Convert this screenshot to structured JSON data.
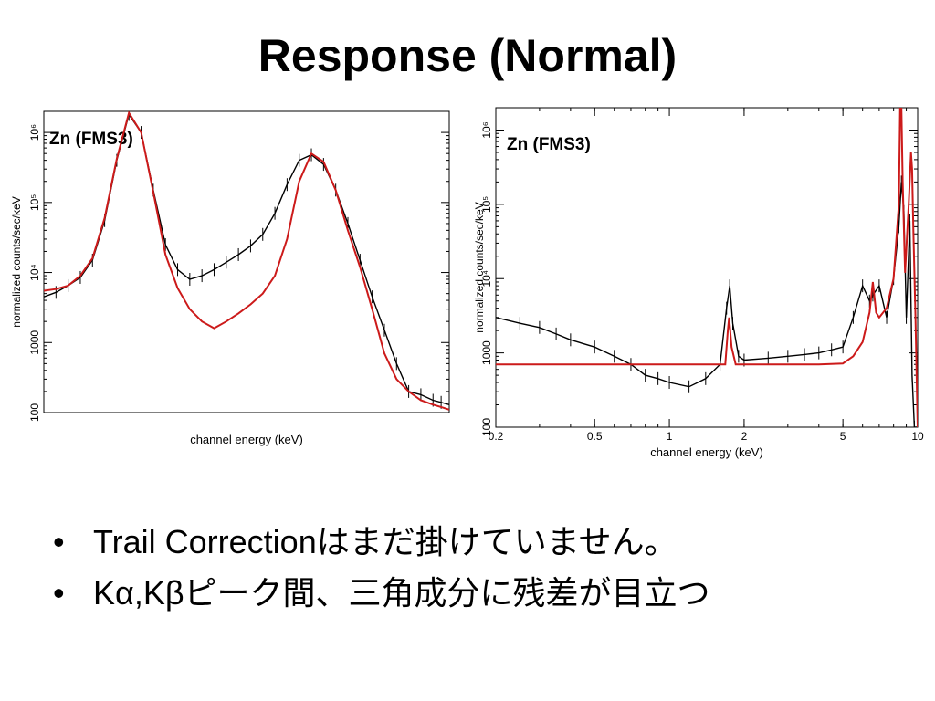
{
  "slide": {
    "title": "Response (Normal)",
    "bullets": [
      "Trail Correctionはまだ掛けていません。",
      "Kα,Kβピーク間、三角成分に残差が目立つ"
    ],
    "bullet_glyph": "•"
  },
  "colors": {
    "data": "#000000",
    "model": "#cc1a1a",
    "axis": "#000000"
  },
  "chart_data": [
    {
      "type": "line",
      "annotation": "Zn (FMS3)",
      "xlabel": "channel energy (keV)",
      "ylabel": "normalized counts/sec/keV",
      "y_scale": "log",
      "ylim": [
        100,
        2000000
      ],
      "y_ticks": [
        {
          "v": 100,
          "label": "100"
        },
        {
          "v": 1000,
          "label": "1000"
        },
        {
          "v": 10000,
          "label": "10⁴"
        },
        {
          "v": 100000,
          "label": "10⁵"
        },
        {
          "v": 1000000,
          "label": "10⁶"
        }
      ],
      "xlim": [
        0,
        1
      ],
      "x_ticks": [],
      "series": [
        {
          "role": "data",
          "x": [
            0.0,
            0.03,
            0.06,
            0.09,
            0.12,
            0.15,
            0.18,
            0.21,
            0.24,
            0.27,
            0.3,
            0.33,
            0.36,
            0.39,
            0.42,
            0.45,
            0.48,
            0.51,
            0.54,
            0.57,
            0.6,
            0.63,
            0.66,
            0.69,
            0.72,
            0.75,
            0.78,
            0.81,
            0.84,
            0.87,
            0.9,
            0.93,
            0.96,
            0.98,
            1.0
          ],
          "y": [
            4500,
            5200,
            6500,
            8500,
            15000,
            55000,
            400000,
            1800000,
            1000000,
            150000,
            25000,
            11000,
            8000,
            9000,
            11000,
            14000,
            18000,
            24000,
            35000,
            70000,
            180000,
            400000,
            480000,
            350000,
            150000,
            50000,
            15000,
            4500,
            1500,
            500,
            200,
            180,
            150,
            140,
            130
          ]
        },
        {
          "role": "model",
          "x": [
            0.0,
            0.03,
            0.06,
            0.09,
            0.12,
            0.15,
            0.18,
            0.21,
            0.24,
            0.27,
            0.3,
            0.33,
            0.36,
            0.39,
            0.42,
            0.45,
            0.48,
            0.51,
            0.54,
            0.57,
            0.6,
            0.63,
            0.66,
            0.69,
            0.72,
            0.75,
            0.78,
            0.81,
            0.84,
            0.87,
            0.9,
            0.93,
            0.96,
            0.98,
            1.0
          ],
          "y": [
            5500,
            5800,
            6500,
            9000,
            16000,
            60000,
            420000,
            1900000,
            1000000,
            140000,
            18000,
            6000,
            3000,
            2000,
            1600,
            2000,
            2600,
            3500,
            5000,
            9000,
            30000,
            200000,
            500000,
            380000,
            150000,
            40000,
            12000,
            3000,
            700,
            300,
            200,
            150,
            130,
            120,
            110
          ]
        }
      ]
    },
    {
      "type": "line",
      "annotation": "Zn (FMS3)",
      "xlabel": "channel energy (keV)",
      "ylabel": "normalized counts/sec/keV",
      "x_scale": "log",
      "xlim": [
        0.2,
        10
      ],
      "x_ticks": [
        {
          "v": 0.2,
          "label": "0.2"
        },
        {
          "v": 0.5,
          "label": "0.5"
        },
        {
          "v": 1,
          "label": "1"
        },
        {
          "v": 2,
          "label": "2"
        },
        {
          "v": 5,
          "label": "5"
        },
        {
          "v": 10,
          "label": "10"
        }
      ],
      "y_scale": "log",
      "ylim": [
        100,
        2000000
      ],
      "y_ticks": [
        {
          "v": 100,
          "label": "100"
        },
        {
          "v": 1000,
          "label": "1000"
        },
        {
          "v": 10000,
          "label": "10⁴"
        },
        {
          "v": 100000,
          "label": "10⁵"
        },
        {
          "v": 1000000,
          "label": "10⁶"
        }
      ],
      "series": [
        {
          "role": "data",
          "x": [
            0.2,
            0.25,
            0.3,
            0.35,
            0.4,
            0.5,
            0.6,
            0.7,
            0.8,
            0.9,
            1.0,
            1.2,
            1.4,
            1.6,
            1.7,
            1.75,
            1.8,
            1.9,
            2.0,
            2.5,
            3.0,
            3.5,
            4.0,
            4.5,
            5.0,
            5.5,
            6.0,
            6.4,
            6.6,
            7.0,
            7.5,
            8.0,
            8.4,
            8.6,
            8.8,
            9.0,
            9.3,
            9.5,
            9.7,
            10.0
          ],
          "y": [
            3000,
            2500,
            2200,
            1800,
            1500,
            1200,
            900,
            700,
            500,
            450,
            400,
            350,
            450,
            700,
            4000,
            8000,
            2500,
            900,
            800,
            850,
            900,
            950,
            1000,
            1100,
            1200,
            3000,
            8000,
            5000,
            6000,
            8000,
            3000,
            10000,
            50000,
            200000,
            80000,
            3000,
            60000,
            500,
            100,
            100
          ]
        },
        {
          "role": "model",
          "x": [
            0.2,
            0.3,
            0.5,
            0.7,
            1.0,
            1.2,
            1.5,
            1.68,
            1.72,
            1.74,
            1.78,
            1.85,
            2.0,
            3.0,
            4.0,
            5.0,
            5.5,
            6.0,
            6.4,
            6.6,
            6.8,
            7.0,
            7.5,
            8.0,
            8.4,
            8.5,
            8.6,
            8.7,
            8.9,
            9.2,
            9.4,
            9.5,
            9.6,
            9.8,
            10.0
          ],
          "y": [
            700,
            700,
            700,
            700,
            700,
            700,
            700,
            700,
            2000,
            3000,
            1200,
            700,
            700,
            700,
            700,
            720,
            900,
            1400,
            3500,
            9000,
            3500,
            3000,
            4000,
            10000,
            100000,
            2000000,
            2000000,
            200000,
            12000,
            100000,
            500000,
            300000,
            50000,
            3000,
            100
          ]
        }
      ]
    }
  ]
}
